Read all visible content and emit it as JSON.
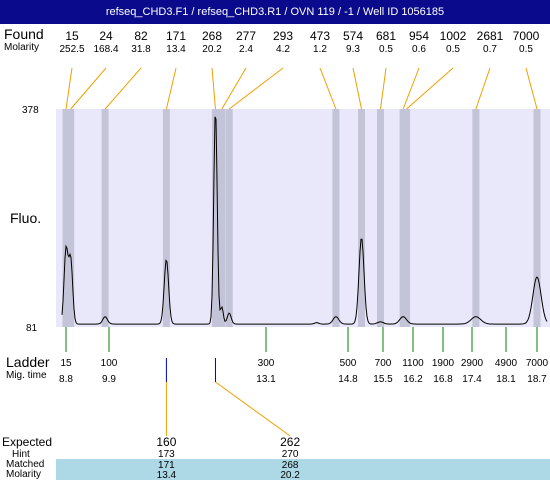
{
  "title": "refseq_CHD3.F1 / refseq_CHD3.R1 / OVN 119 / -1 / Well ID 1056185",
  "labels": {
    "found": "Found",
    "molarity": "Molarity",
    "fluo": "Fluo.",
    "ladder": "Ladder",
    "mig_time": "Mig. time",
    "expected": "Expected",
    "hint": "Hint",
    "matched": "Matched",
    "molarity_bottom": "Molarity"
  },
  "colors": {
    "title_bg": "#0a0a8c",
    "plot_bg": "#e8e8fa",
    "peak_band": "#c4c4d8",
    "found_line": "#f0a000",
    "ladder_line": "#008000",
    "match_line": "#0000c0",
    "matched_band": "#add8e6"
  },
  "chart_data": {
    "type": "line",
    "ylim": [
      81,
      378
    ],
    "yticks": [
      "378",
      "81"
    ],
    "found_peaks": [
      {
        "size": "15",
        "molarity": "252.5",
        "time": 8.8
      },
      {
        "size": "24",
        "molarity": "168.4",
        "time": 8.92
      },
      {
        "size": "82",
        "molarity": "31.8",
        "time": 9.8
      },
      {
        "size": "171",
        "molarity": "13.4",
        "time": 11.07
      },
      {
        "size": "268",
        "molarity": "20.2",
        "time": 12.07
      },
      {
        "size": "277",
        "molarity": "2.4",
        "time": 12.2
      },
      {
        "size": "293",
        "molarity": "4.2",
        "time": 12.35
      },
      {
        "size": "473",
        "molarity": "1.2",
        "time": 14.55
      },
      {
        "size": "574",
        "molarity": "9.3",
        "time": 15.07
      },
      {
        "size": "681",
        "molarity": "0.5",
        "time": 15.45
      },
      {
        "size": "954",
        "molarity": "0.6",
        "time": 15.97
      },
      {
        "size": "1002",
        "molarity": "0.5",
        "time": 16.05
      },
      {
        "size": "2681",
        "molarity": "0.7",
        "time": 17.48
      },
      {
        "size": "7000",
        "molarity": "0.5",
        "time": 18.7
      }
    ],
    "ladder": [
      {
        "size": "15",
        "time": "8.8"
      },
      {
        "size": "100",
        "time": "9.9"
      },
      {
        "size": "300",
        "time": "13.1"
      },
      {
        "size": "500",
        "time": "14.8"
      },
      {
        "size": "700",
        "time": "15.5"
      },
      {
        "size": "1100",
        "time": "16.2"
      },
      {
        "size": "1900",
        "time": "16.8"
      },
      {
        "size": "2900",
        "time": "17.4"
      },
      {
        "size": "4900",
        "time": "18.1"
      },
      {
        "size": "7000",
        "time": "18.7"
      }
    ],
    "trace": {
      "baseline": 85,
      "peaks": [
        {
          "time": 8.8,
          "height": 186,
          "width": 0.05
        },
        {
          "time": 8.92,
          "height": 173,
          "width": 0.05
        },
        {
          "time": 9.8,
          "height": 95,
          "width": 0.06
        },
        {
          "time": 11.07,
          "height": 173,
          "width": 0.045
        },
        {
          "time": 12.07,
          "height": 378,
          "width": 0.035
        },
        {
          "time": 12.2,
          "height": 108,
          "width": 0.03
        },
        {
          "time": 12.35,
          "height": 100,
          "width": 0.04
        },
        {
          "time": 14.15,
          "height": 87,
          "width": 0.04
        },
        {
          "time": 14.55,
          "height": 95,
          "width": 0.06
        },
        {
          "time": 15.07,
          "height": 203,
          "width": 0.05
        },
        {
          "time": 15.45,
          "height": 88,
          "width": 0.06
        },
        {
          "time": 15.97,
          "height": 95,
          "width": 0.08
        },
        {
          "time": 17.48,
          "height": 95,
          "width": 0.1
        },
        {
          "time": 18.7,
          "height": 149,
          "width": 0.08
        }
      ]
    },
    "expected": [
      {
        "expected": "160",
        "hint": "173",
        "matched": "171",
        "molarity": "13.4",
        "time": 11.07,
        "match_time": 11.07
      },
      {
        "expected": "262",
        "hint": "270",
        "matched": "268",
        "molarity": "20.2",
        "time": 13.6,
        "match_time": 12.07
      }
    ]
  }
}
